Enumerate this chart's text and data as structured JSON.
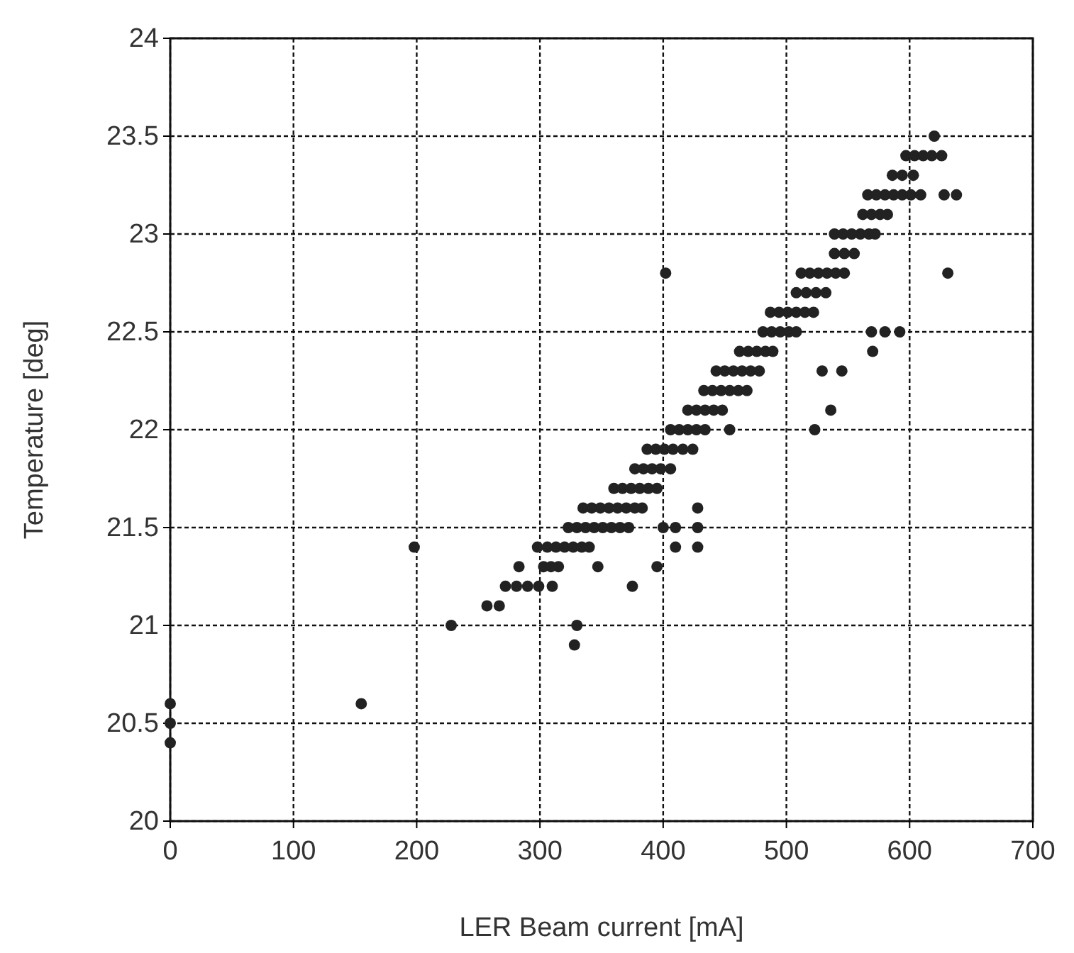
{
  "chart_data": {
    "type": "scatter",
    "xlabel": "LER Beam current [mA]",
    "ylabel": "Temperature [deg]",
    "xlim": [
      0,
      700
    ],
    "ylim": [
      20,
      24
    ],
    "xticks": [
      0,
      100,
      200,
      300,
      400,
      500,
      600,
      700
    ],
    "yticks": [
      20,
      20.5,
      21,
      21.5,
      22,
      22.5,
      23,
      23.5,
      24
    ],
    "grid": true,
    "marker": "circle",
    "series": [
      {
        "color": "#222222",
        "x": [
          0,
          0,
          0,
          155,
          328,
          228,
          330,
          257,
          267,
          272,
          281,
          290,
          299,
          310,
          375,
          283,
          303,
          309,
          315,
          347,
          395,
          198,
          298,
          306,
          313,
          320,
          327,
          334,
          340,
          410,
          428,
          323,
          330,
          337,
          344,
          351,
          358,
          365,
          372,
          400,
          410,
          428,
          335,
          342,
          349,
          356,
          363,
          370,
          377,
          383,
          428,
          360,
          367,
          374,
          381,
          388,
          395,
          377,
          384,
          391,
          398,
          406,
          387,
          394,
          401,
          408,
          416,
          424,
          406,
          413,
          420,
          427,
          434,
          454,
          523,
          420,
          427,
          434,
          441,
          448,
          536,
          433,
          440,
          447,
          454,
          461,
          468,
          443,
          450,
          457,
          464,
          471,
          478,
          529,
          545,
          462,
          469,
          476,
          483,
          489,
          570,
          481,
          488,
          495,
          502,
          508,
          569,
          580,
          592,
          487,
          494,
          501,
          508,
          515,
          522,
          508,
          516,
          524,
          532,
          402,
          512,
          519,
          526,
          533,
          540,
          547,
          631,
          539,
          547,
          555,
          539,
          546,
          553,
          560,
          567,
          572,
          562,
          569,
          576,
          582,
          566,
          573,
          580,
          587,
          594,
          601,
          609,
          628,
          638,
          586,
          594,
          603,
          597,
          604,
          611,
          618,
          626,
          620
        ],
        "values": [
          20.4,
          20.5,
          20.6,
          20.6,
          20.9,
          21.0,
          21.0,
          21.1,
          21.1,
          21.2,
          21.2,
          21.2,
          21.2,
          21.2,
          21.2,
          21.3,
          21.3,
          21.3,
          21.3,
          21.3,
          21.3,
          21.4,
          21.4,
          21.4,
          21.4,
          21.4,
          21.4,
          21.4,
          21.4,
          21.4,
          21.4,
          21.5,
          21.5,
          21.5,
          21.5,
          21.5,
          21.5,
          21.5,
          21.5,
          21.5,
          21.5,
          21.5,
          21.6,
          21.6,
          21.6,
          21.6,
          21.6,
          21.6,
          21.6,
          21.6,
          21.6,
          21.7,
          21.7,
          21.7,
          21.7,
          21.7,
          21.7,
          21.8,
          21.8,
          21.8,
          21.8,
          21.8,
          21.9,
          21.9,
          21.9,
          21.9,
          21.9,
          21.9,
          22.0,
          22.0,
          22.0,
          22.0,
          22.0,
          22.0,
          22.0,
          22.1,
          22.1,
          22.1,
          22.1,
          22.1,
          22.1,
          22.2,
          22.2,
          22.2,
          22.2,
          22.2,
          22.2,
          22.3,
          22.3,
          22.3,
          22.3,
          22.3,
          22.3,
          22.3,
          22.3,
          22.4,
          22.4,
          22.4,
          22.4,
          22.4,
          22.4,
          22.5,
          22.5,
          22.5,
          22.5,
          22.5,
          22.5,
          22.5,
          22.5,
          22.6,
          22.6,
          22.6,
          22.6,
          22.6,
          22.6,
          22.7,
          22.7,
          22.7,
          22.7,
          22.8,
          22.8,
          22.8,
          22.8,
          22.8,
          22.8,
          22.8,
          22.8,
          22.9,
          22.9,
          22.9,
          23.0,
          23.0,
          23.0,
          23.0,
          23.0,
          23.0,
          23.1,
          23.1,
          23.1,
          23.1,
          23.2,
          23.2,
          23.2,
          23.2,
          23.2,
          23.2,
          23.2,
          23.2,
          23.2,
          23.3,
          23.3,
          23.3,
          23.4,
          23.4,
          23.4,
          23.4,
          23.4,
          23.5
        ]
      }
    ]
  }
}
